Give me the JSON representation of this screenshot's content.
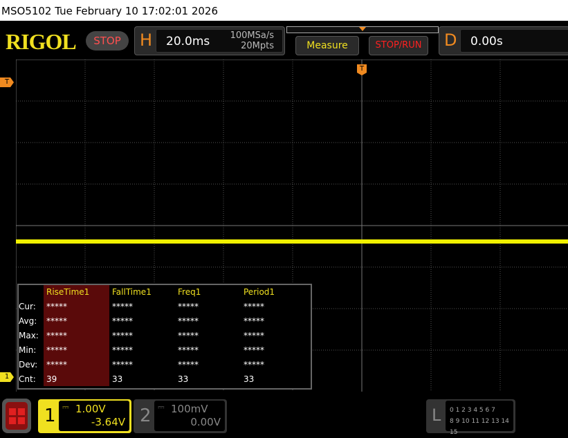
{
  "titlebar": "MSO5102  Tue February 10 17:02:01 2026",
  "logo": "RIGOL",
  "status": "STOP",
  "horizontal": {
    "label": "H",
    "timebase": "20.0ms",
    "sample_rate": "100MSa/s",
    "memory_depth": "20Mpts"
  },
  "buttons": {
    "measure": "Measure",
    "stop_run": "STOP/RUN"
  },
  "delay": {
    "label": "D",
    "value": "0.00s"
  },
  "trigger_marker": "T",
  "ch1_marker": "1",
  "measurements": {
    "headers": [
      "RiseTime1",
      "FallTime1",
      "Freq1",
      "Period1"
    ],
    "rows": [
      {
        "label": "Cur:",
        "values": [
          "*****",
          "*****",
          "*****",
          "*****"
        ]
      },
      {
        "label": "Avg:",
        "values": [
          "*****",
          "*****",
          "*****",
          "*****"
        ]
      },
      {
        "label": "Max:",
        "values": [
          "*****",
          "*****",
          "*****",
          "*****"
        ]
      },
      {
        "label": "Min:",
        "values": [
          "*****",
          "*****",
          "*****",
          "*****"
        ]
      },
      {
        "label": "Dev:",
        "values": [
          "*****",
          "*****",
          "*****",
          "*****"
        ]
      },
      {
        "label": "Cnt:",
        "values": [
          "39",
          "33",
          "33",
          "33"
        ]
      }
    ]
  },
  "channels": [
    {
      "num": "1",
      "scale": "1.00V",
      "offset": "-3.64V",
      "color": "#f0e020"
    },
    {
      "num": "2",
      "scale": "100mV",
      "offset": "0.00V",
      "color": "#888888"
    }
  ],
  "logic": {
    "label": "L",
    "row1": "0 1 2 3  4 5 6 7",
    "row2": "8 9 10 11 12 13 14 15"
  }
}
